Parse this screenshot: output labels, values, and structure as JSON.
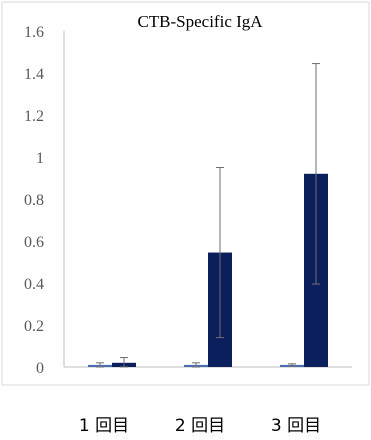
{
  "chart_data": {
    "type": "bar",
    "title": "CTB-Specific IgA",
    "xlabel": "",
    "ylabel": "",
    "categories": [
      "1 回目",
      "2 回目",
      "3 回目"
    ],
    "ylim": [
      0,
      1.6
    ],
    "yticks": [
      0,
      0.2,
      0.4,
      0.6,
      0.8,
      1,
      1.2,
      1.4,
      1.6
    ],
    "ytick_labels": [
      "0",
      "0.2",
      "0.4",
      "0.6",
      "0.8",
      "1",
      "1.2",
      "1.4",
      "1.6"
    ],
    "grid": false,
    "legend": "none",
    "series": [
      {
        "color": "#4a6fb5",
        "values": [
          0.01,
          0.01,
          0.01
        ],
        "error": [
          0.01,
          0.01,
          0.005
        ]
      },
      {
        "color": "#0b1f5c",
        "values": [
          0.02,
          0.545,
          0.92
        ],
        "error": [
          0.025,
          0.405,
          0.525
        ]
      }
    ]
  }
}
